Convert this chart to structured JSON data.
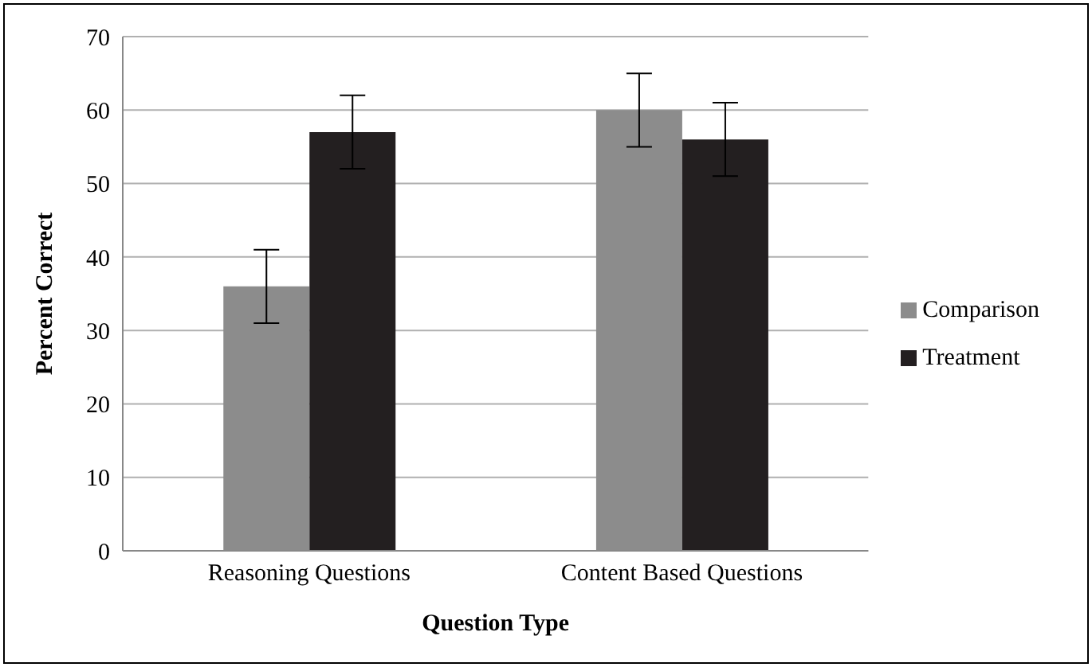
{
  "chart_data": {
    "type": "bar",
    "xlabel": "Question Type",
    "ylabel": "Percent Correct",
    "categories": [
      "Reasoning Questions",
      "Content Based Questions"
    ],
    "series": [
      {
        "name": "Comparison",
        "color": "#8c8c8c",
        "values": [
          36,
          60
        ],
        "errors": [
          5,
          5
        ]
      },
      {
        "name": "Treatment",
        "color": "#231f20",
        "values": [
          57,
          56
        ],
        "errors": [
          5,
          5
        ]
      }
    ],
    "ylim": [
      0,
      70
    ],
    "yticks": [
      0,
      10,
      20,
      30,
      40,
      50,
      60,
      70
    ],
    "grid": "y",
    "legend": "right"
  }
}
